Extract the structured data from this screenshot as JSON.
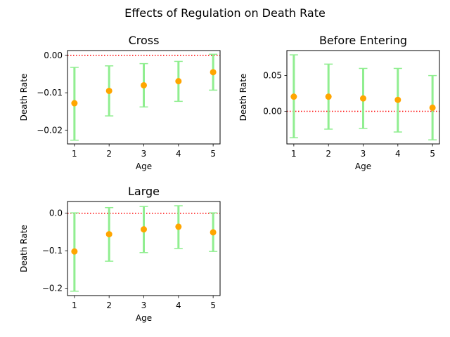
{
  "figure": {
    "title": "Effects of Regulation on Death Rate"
  },
  "colors": {
    "point": "#ffa500",
    "errorbar": "#90ee90",
    "reference_line": "#ff0000"
  },
  "chart_data": [
    {
      "type": "scatter",
      "title": "Cross",
      "xlabel": "Age",
      "ylabel": "Death Rate",
      "x": [
        1,
        2,
        3,
        4,
        5
      ],
      "series": [
        {
          "values": [
            -0.0128,
            -0.0095,
            -0.008,
            -0.0069,
            -0.0045
          ],
          "lower": [
            -0.0227,
            -0.0162,
            -0.0138,
            -0.0123,
            -0.0093
          ],
          "upper": [
            -0.0032,
            -0.0028,
            -0.0022,
            -0.0016,
            0.0003
          ]
        }
      ],
      "reference_line": 0,
      "yticks": [
        0.0,
        -0.01,
        -0.02
      ],
      "ytick_labels": [
        "0.00",
        "−0.01",
        "−0.02"
      ],
      "xlim": [
        0.8,
        5.2
      ],
      "ylim": [
        -0.0237,
        0.0013
      ],
      "grid": false,
      "legend": "none"
    },
    {
      "type": "scatter",
      "title": "Before Entering",
      "xlabel": "Age",
      "ylabel": "Death Rate",
      "x": [
        1,
        2,
        3,
        4,
        5
      ],
      "series": [
        {
          "values": [
            0.0205,
            0.0205,
            0.018,
            0.016,
            0.005
          ],
          "lower": [
            -0.037,
            -0.025,
            -0.024,
            -0.029,
            -0.04
          ],
          "upper": [
            0.079,
            0.066,
            0.06,
            0.06,
            0.05
          ]
        }
      ],
      "reference_line": 0,
      "yticks": [
        0.05,
        0.0
      ],
      "ytick_labels": [
        "0.05",
        "0.00"
      ],
      "xlim": [
        0.8,
        5.2
      ],
      "ylim": [
        -0.0457,
        0.085
      ],
      "grid": false,
      "legend": "none"
    },
    {
      "type": "scatter",
      "title": "Large",
      "xlabel": "Age",
      "ylabel": "Death Rate",
      "x": [
        1,
        2,
        3,
        4,
        5
      ],
      "series": [
        {
          "values": [
            -0.102,
            -0.056,
            -0.043,
            -0.036,
            -0.051
          ],
          "lower": [
            -0.208,
            -0.128,
            -0.105,
            -0.094,
            -0.102
          ],
          "upper": [
            0.001,
            0.015,
            0.018,
            0.02,
            0.001
          ]
        }
      ],
      "reference_line": 0,
      "yticks": [
        0.0,
        -0.1,
        -0.2
      ],
      "ytick_labels": [
        "0.0",
        "−0.1",
        "−0.2"
      ],
      "xlim": [
        0.8,
        5.2
      ],
      "ylim": [
        -0.2197,
        0.0313
      ],
      "grid": false,
      "legend": "none"
    }
  ]
}
